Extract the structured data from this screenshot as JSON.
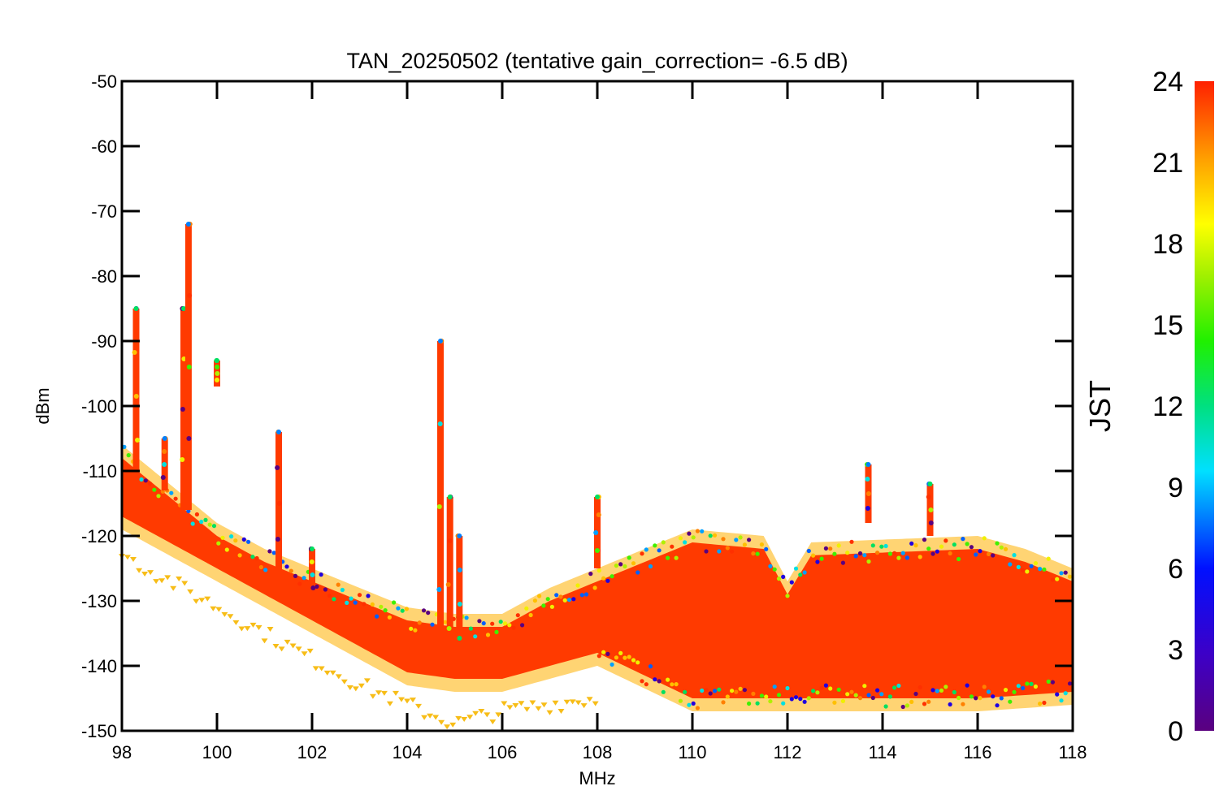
{
  "chart_data": {
    "type": "scatter",
    "title": "TAN_20250502 (tentative gain_correction= -6.5 dB)",
    "xlabel": "MHz",
    "ylabel": "dBm",
    "xlim": [
      98,
      118
    ],
    "ylim": [
      -150,
      -50
    ],
    "xticks": [
      "98",
      "100",
      "102",
      "104",
      "106",
      "108",
      "110",
      "112",
      "114",
      "116",
      "118"
    ],
    "yticks": [
      "-50",
      "-60",
      "-70",
      "-80",
      "-90",
      "-100",
      "-110",
      "-120",
      "-130",
      "-140",
      "-150"
    ],
    "grid": false,
    "colorbar": {
      "label": "JST",
      "range": [
        0,
        24
      ],
      "ticks": [
        "0",
        "3",
        "6",
        "9",
        "12",
        "15",
        "18",
        "21",
        "24"
      ],
      "colormap": "rainbow (purple-blue-cyan-green-yellow-orange-red)"
    },
    "noise_floor_upper": [
      {
        "x": 98,
        "y": -108
      },
      {
        "x": 99,
        "y": -114
      },
      {
        "x": 100,
        "y": -120
      },
      {
        "x": 101,
        "y": -124
      },
      {
        "x": 102,
        "y": -127
      },
      {
        "x": 103,
        "y": -130
      },
      {
        "x": 104,
        "y": -133
      },
      {
        "x": 105,
        "y": -134
      },
      {
        "x": 106,
        "y": -134
      },
      {
        "x": 107,
        "y": -130
      },
      {
        "x": 108,
        "y": -127
      },
      {
        "x": 110,
        "y": -121
      },
      {
        "x": 111.5,
        "y": -122
      },
      {
        "x": 112,
        "y": -129
      },
      {
        "x": 112.5,
        "y": -123
      },
      {
        "x": 116,
        "y": -122
      },
      {
        "x": 117,
        "y": -124
      },
      {
        "x": 118,
        "y": -127
      }
    ],
    "noise_floor_lower": [
      {
        "x": 98,
        "y": -117
      },
      {
        "x": 99,
        "y": -121
      },
      {
        "x": 100,
        "y": -125
      },
      {
        "x": 101,
        "y": -129
      },
      {
        "x": 102,
        "y": -133
      },
      {
        "x": 103,
        "y": -137
      },
      {
        "x": 104,
        "y": -141
      },
      {
        "x": 105,
        "y": -142
      },
      {
        "x": 106,
        "y": -142
      },
      {
        "x": 107,
        "y": -140
      },
      {
        "x": 108,
        "y": -138
      },
      {
        "x": 110,
        "y": -145
      },
      {
        "x": 112,
        "y": -145
      },
      {
        "x": 114,
        "y": -145
      },
      {
        "x": 116,
        "y": -145
      },
      {
        "x": 118,
        "y": -144
      }
    ],
    "low_trace": [
      {
        "x": 98,
        "y": -123
      },
      {
        "x": 99,
        "y": -127
      },
      {
        "x": 100,
        "y": -131
      },
      {
        "x": 101,
        "y": -135
      },
      {
        "x": 102,
        "y": -139
      },
      {
        "x": 103,
        "y": -143
      },
      {
        "x": 104,
        "y": -146
      },
      {
        "x": 105,
        "y": -149
      },
      {
        "x": 106,
        "y": -147
      },
      {
        "x": 107,
        "y": -146
      },
      {
        "x": 108,
        "y": -145
      }
    ],
    "peaks": [
      {
        "freq": 98.3,
        "top": -85,
        "base": -112
      },
      {
        "freq": 98.9,
        "top": -105,
        "base": -113
      },
      {
        "freq": 99.3,
        "top": -85,
        "base": -116
      },
      {
        "freq": 99.4,
        "top": -72,
        "base": -116
      },
      {
        "freq": 100.0,
        "top": -93,
        "base": -97
      },
      {
        "freq": 101.3,
        "top": -104,
        "base": -126
      },
      {
        "freq": 102.0,
        "top": -122,
        "base": -130
      },
      {
        "freq": 104.7,
        "top": -90,
        "base": -141
      },
      {
        "freq": 104.9,
        "top": -114,
        "base": -141
      },
      {
        "freq": 105.1,
        "top": -120,
        "base": -141
      },
      {
        "freq": 108.0,
        "top": -114,
        "base": -125
      },
      {
        "freq": 113.7,
        "top": -109,
        "base": -118
      },
      {
        "freq": 115.0,
        "top": -112,
        "base": -120
      }
    ]
  }
}
